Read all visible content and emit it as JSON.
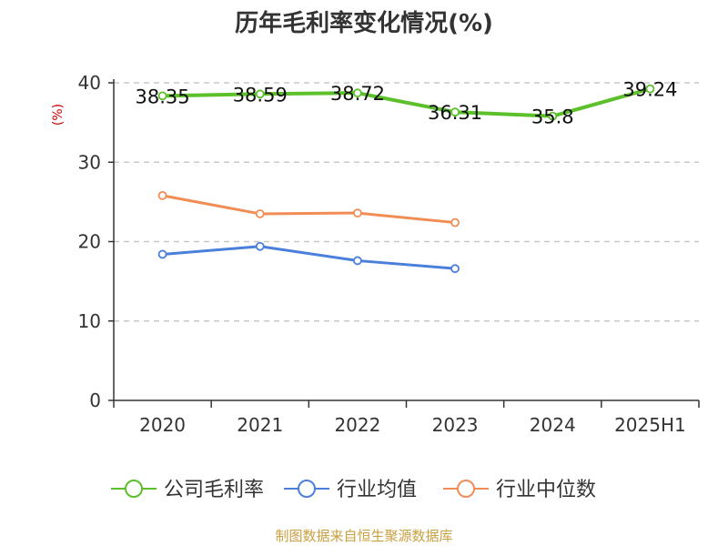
{
  "chart_data": {
    "type": "line",
    "title": "历年毛利率变化情况(%)",
    "ylabel": "(%)",
    "xlabel": "",
    "categories": [
      "2020",
      "2021",
      "2022",
      "2023",
      "2024",
      "2025H1"
    ],
    "ylim": [
      0,
      40
    ],
    "yticks": [
      0,
      10,
      20,
      30,
      40
    ],
    "grid": true,
    "legend_position": "bottom",
    "series": [
      {
        "name": "公司毛利率",
        "color": "#5cc02a",
        "values": [
          38.35,
          38.59,
          38.72,
          36.31,
          35.8,
          39.24
        ],
        "labels": [
          "38.35",
          "38.59",
          "38.72",
          "36.31",
          "35.8",
          "39.24"
        ]
      },
      {
        "name": "行业均值",
        "color": "#4a7fdc",
        "values": [
          18.4,
          19.4,
          17.6,
          16.6,
          null,
          null
        ]
      },
      {
        "name": "行业中位数",
        "color": "#f28c55",
        "values": [
          25.8,
          23.5,
          23.6,
          22.4,
          null,
          null
        ]
      }
    ]
  },
  "footer": {
    "source": "制图数据来自恒生聚源数据库"
  }
}
